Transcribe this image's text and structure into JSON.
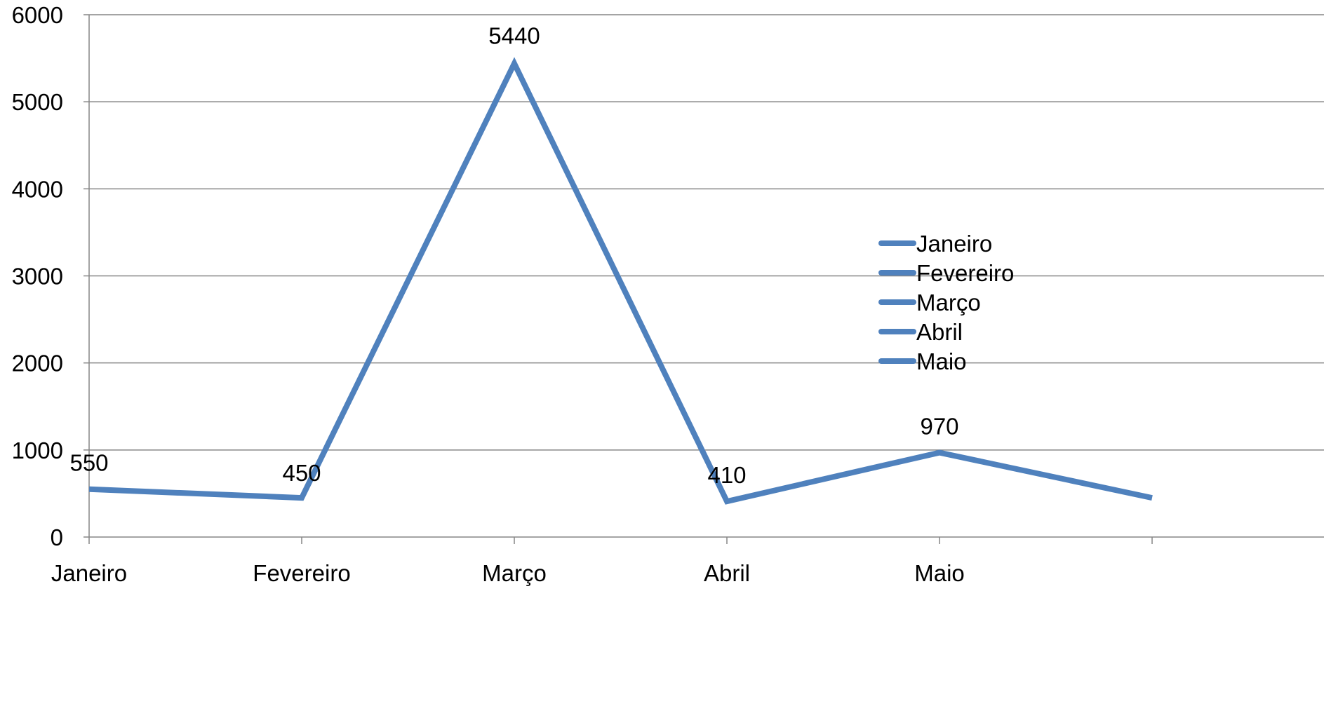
{
  "chart_data": {
    "type": "line",
    "title": "",
    "xlabel": "",
    "ylabel": "",
    "categories": [
      "Janeiro",
      "Fevereiro",
      "Março",
      "Abril",
      "Maio",
      ""
    ],
    "series": [
      {
        "values": [
          550,
          450,
          5440,
          410,
          970,
          450
        ]
      }
    ],
    "data_labels": [
      "550",
      "450",
      "5440",
      "410",
      "970"
    ],
    "y_ticks": [
      0,
      1000,
      2000,
      3000,
      4000,
      5000,
      6000
    ],
    "y_tick_labels": [
      "0",
      "1000",
      "2000",
      "3000",
      "4000",
      "5000",
      "6000"
    ],
    "ylim": [
      0,
      6000
    ],
    "grid": true,
    "legend": {
      "placement": "right",
      "entries": [
        "Janeiro",
        "Fevereiro",
        "Março",
        "Abril",
        "Maio"
      ]
    },
    "colors": {
      "series": "#4f81bd",
      "grid": "#868686",
      "axis": "#868686"
    }
  }
}
